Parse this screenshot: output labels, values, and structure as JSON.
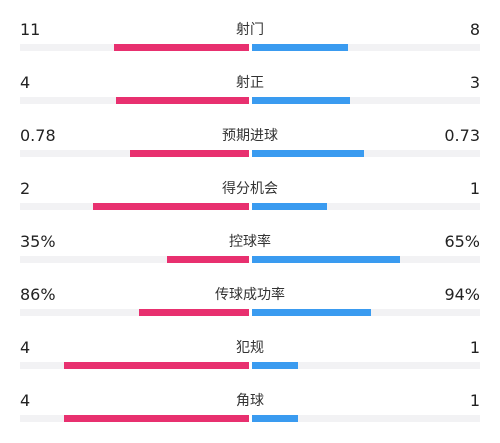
{
  "colors": {
    "home": "#e8306f",
    "away": "#3a9bf0",
    "track": "#f2f2f4"
  },
  "stats": [
    {
      "label": "射门",
      "home": "11",
      "away": "8",
      "home_fill": 0.59,
      "away_fill": 0.42
    },
    {
      "label": "射正",
      "home": "4",
      "away": "3",
      "home_fill": 0.58,
      "away_fill": 0.43
    },
    {
      "label": "预期进球",
      "home": "0.78",
      "away": "0.73",
      "home_fill": 0.52,
      "away_fill": 0.49
    },
    {
      "label": "得分机会",
      "home": "2",
      "away": "1",
      "home_fill": 0.68,
      "away_fill": 0.33
    },
    {
      "label": "控球率",
      "home": "35%",
      "away": "65%",
      "home_fill": 0.36,
      "away_fill": 0.65
    },
    {
      "label": "传球成功率",
      "home": "86%",
      "away": "94%",
      "home_fill": 0.48,
      "away_fill": 0.52
    },
    {
      "label": "犯规",
      "home": "4",
      "away": "1",
      "home_fill": 0.81,
      "away_fill": 0.2
    },
    {
      "label": "角球",
      "home": "4",
      "away": "1",
      "home_fill": 0.81,
      "away_fill": 0.2
    }
  ]
}
